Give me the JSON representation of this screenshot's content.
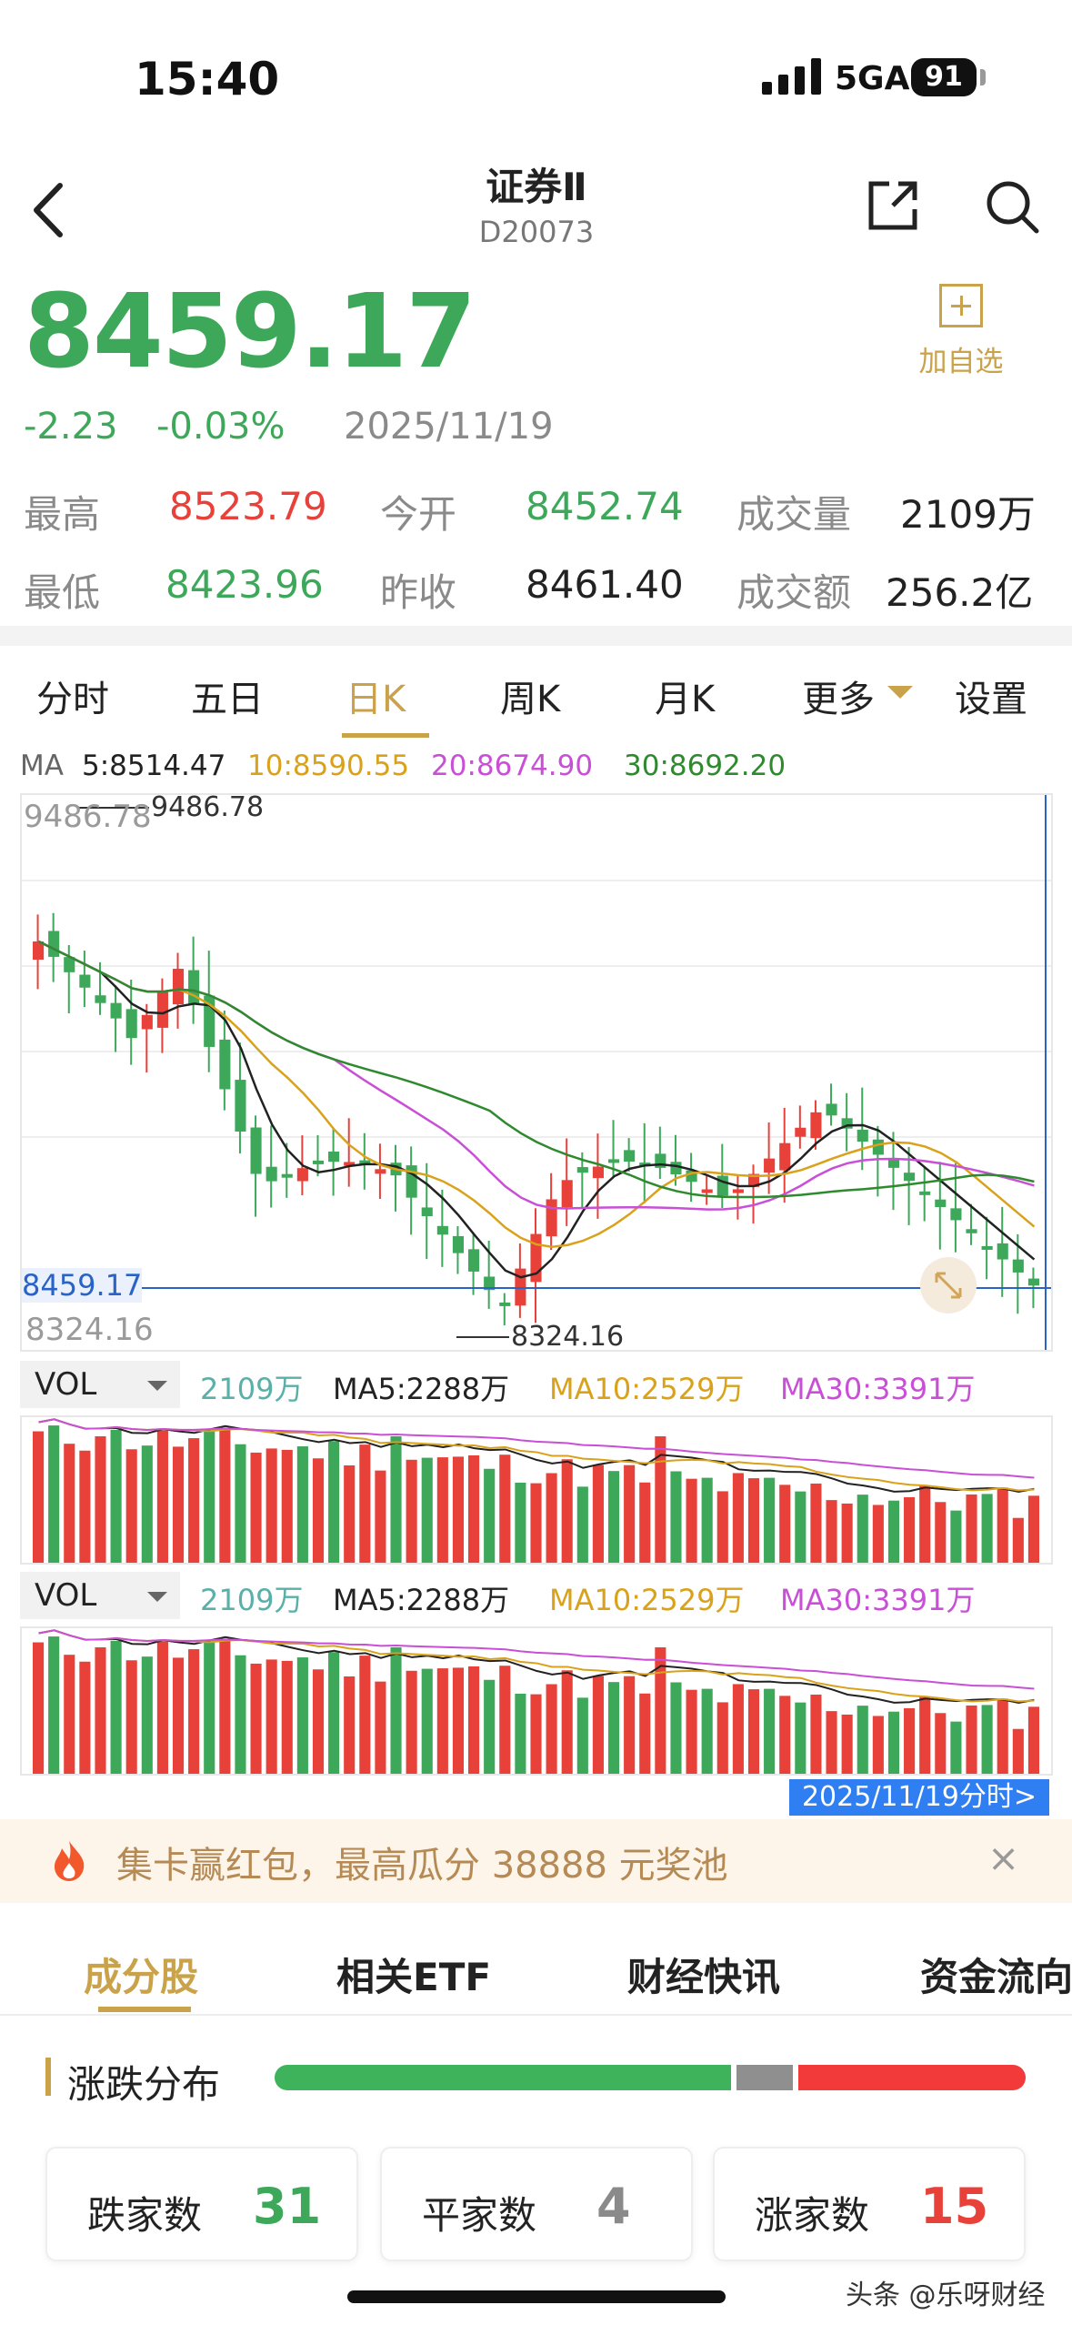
{
  "status_bar": {
    "time": "15:40",
    "network": "5GA",
    "battery": "91"
  },
  "header": {
    "title": "证券Ⅱ",
    "code": "D20073",
    "back_icon": "chevron-left-icon",
    "share_icon": "share-icon",
    "search_icon": "search-icon"
  },
  "quote": {
    "price": "8459.17",
    "change": "-2.23",
    "change_pct": "-0.03%",
    "date": "2025/11/19",
    "add_favorite": "加自选",
    "high_label": "最高",
    "high": "8523.79",
    "open_label": "今开",
    "open": "8452.74",
    "volume_label": "成交量",
    "volume": "2109万",
    "low_label": "最低",
    "low": "8423.96",
    "prev_close_label": "昨收",
    "prev_close": "8461.40",
    "amount_label": "成交额",
    "amount": "256.2亿"
  },
  "kline_tabs": [
    "分时",
    "五日",
    "日K",
    "周K",
    "月K",
    "更多",
    "设置"
  ],
  "active_kline_tab": "日K",
  "ma_legend": {
    "label": "MA",
    "ma5": "5:8514.47",
    "ma10": "10:8590.55",
    "ma20": "20:8674.90",
    "ma30": "30:8692.20"
  },
  "chart_labels": {
    "max_axis": "9486.78",
    "max_marker": "9486.78",
    "current_line": "8459.17",
    "min_axis": "8324.16",
    "min_marker": "8324.16"
  },
  "chart_data": {
    "type": "candlestick",
    "y_range": [
      8324.16,
      9486.78
    ],
    "reference_line": 8459.17,
    "max_marker": 9486.78,
    "min_marker": 8324.16,
    "volume_panels": 2
  },
  "volume_panel": {
    "selector": "VOL",
    "vol": "2109万",
    "ma5": "MA5:2288万",
    "ma10": "MA10:2529万",
    "ma30": "MA30:3391万"
  },
  "date_link": "2025/11/19分时>",
  "banner": {
    "text": "集卡赢红包，最高瓜分 38888 元奖池",
    "close": "×"
  },
  "bottom_tabs": [
    "成分股",
    "相关ETF",
    "财经快讯",
    "资金流向"
  ],
  "distribution": {
    "title": "涨跌分布",
    "down_label": "跌家数",
    "down": "31",
    "flat_label": "平家数",
    "flat": "4",
    "up_label": "涨家数",
    "up": "15"
  },
  "watermark": "头条 @乐呀财经",
  "colors": {
    "up": "#e8413a",
    "down": "#3da85a",
    "accent": "#c9a24a",
    "ma5": "#222222",
    "ma10": "#d9a21a",
    "ma20": "#c84fd6",
    "ma30": "#2f8a2f"
  }
}
